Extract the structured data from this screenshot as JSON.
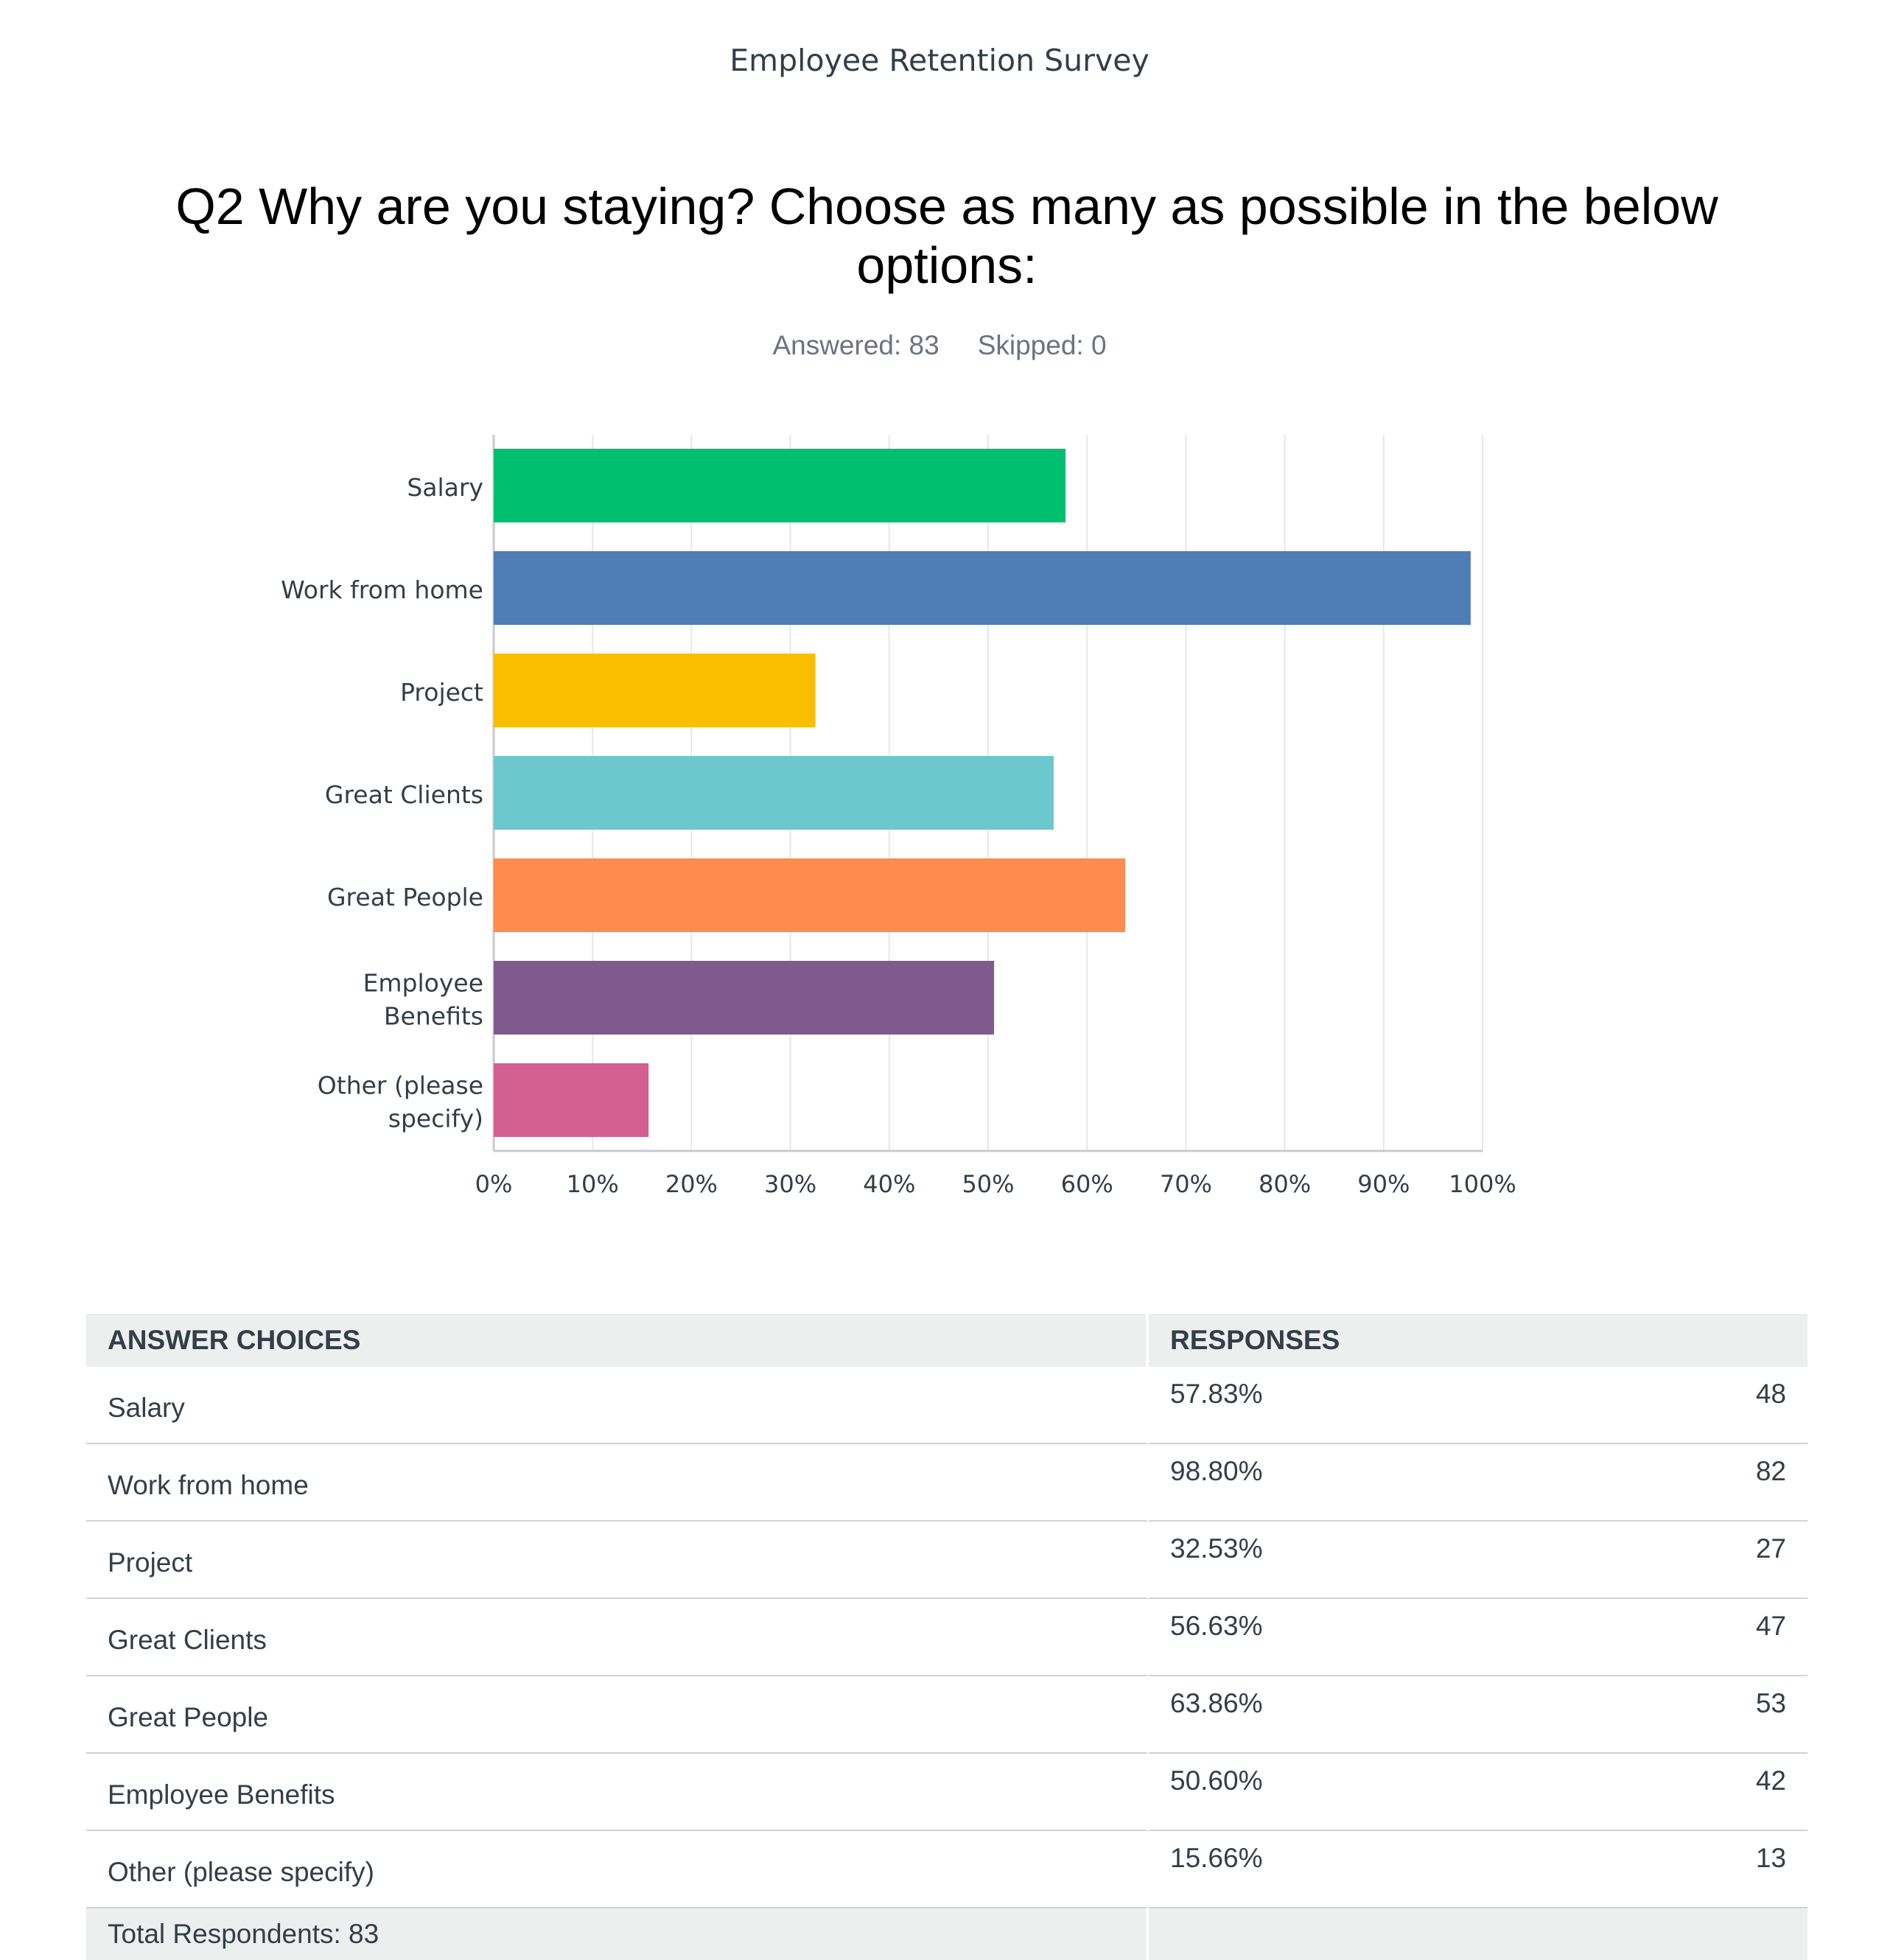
{
  "survey_title": "Employee Retention Survey",
  "question_title": "Q2 Why are you staying? Choose as many as possible in the below options:",
  "stats": {
    "answered": "Answered: 83",
    "skipped": "Skipped: 0"
  },
  "chart_data": {
    "type": "bar",
    "orientation": "horizontal",
    "categories": [
      [
        "Salary"
      ],
      [
        "Work from home"
      ],
      [
        "Project"
      ],
      [
        "Great Clients"
      ],
      [
        "Great People"
      ],
      [
        "Employee",
        "Benefits"
      ],
      [
        "Other (please",
        "specify)"
      ]
    ],
    "values": [
      57.83,
      98.8,
      32.53,
      56.63,
      63.86,
      50.6,
      15.66
    ],
    "colors": [
      "#00bf6f",
      "#507cb6",
      "#f9be00",
      "#6bc8cd",
      "#ff8b4f",
      "#7f5a8f",
      "#d25f90"
    ],
    "xlim": [
      0,
      100
    ],
    "x_ticks": [
      "0%",
      "10%",
      "20%",
      "30%",
      "40%",
      "50%",
      "60%",
      "70%",
      "80%",
      "90%",
      "100%"
    ],
    "grid": true,
    "xlabel": "",
    "ylabel": ""
  },
  "table": {
    "headers": {
      "choices": "ANSWER CHOICES",
      "responses": "RESPONSES"
    },
    "rows": [
      {
        "choice": "Salary",
        "percent": "57.83%",
        "count": "48"
      },
      {
        "choice": "Work from home",
        "percent": "98.80%",
        "count": "82"
      },
      {
        "choice": "Project",
        "percent": "32.53%",
        "count": "27"
      },
      {
        "choice": "Great Clients",
        "percent": "56.63%",
        "count": "47"
      },
      {
        "choice": "Great People",
        "percent": "63.86%",
        "count": "53"
      },
      {
        "choice": "Employee Benefits",
        "percent": "50.60%",
        "count": "42"
      },
      {
        "choice": "Other (please specify)",
        "percent": "15.66%",
        "count": "13"
      }
    ],
    "total": "Total Respondents: 83"
  }
}
